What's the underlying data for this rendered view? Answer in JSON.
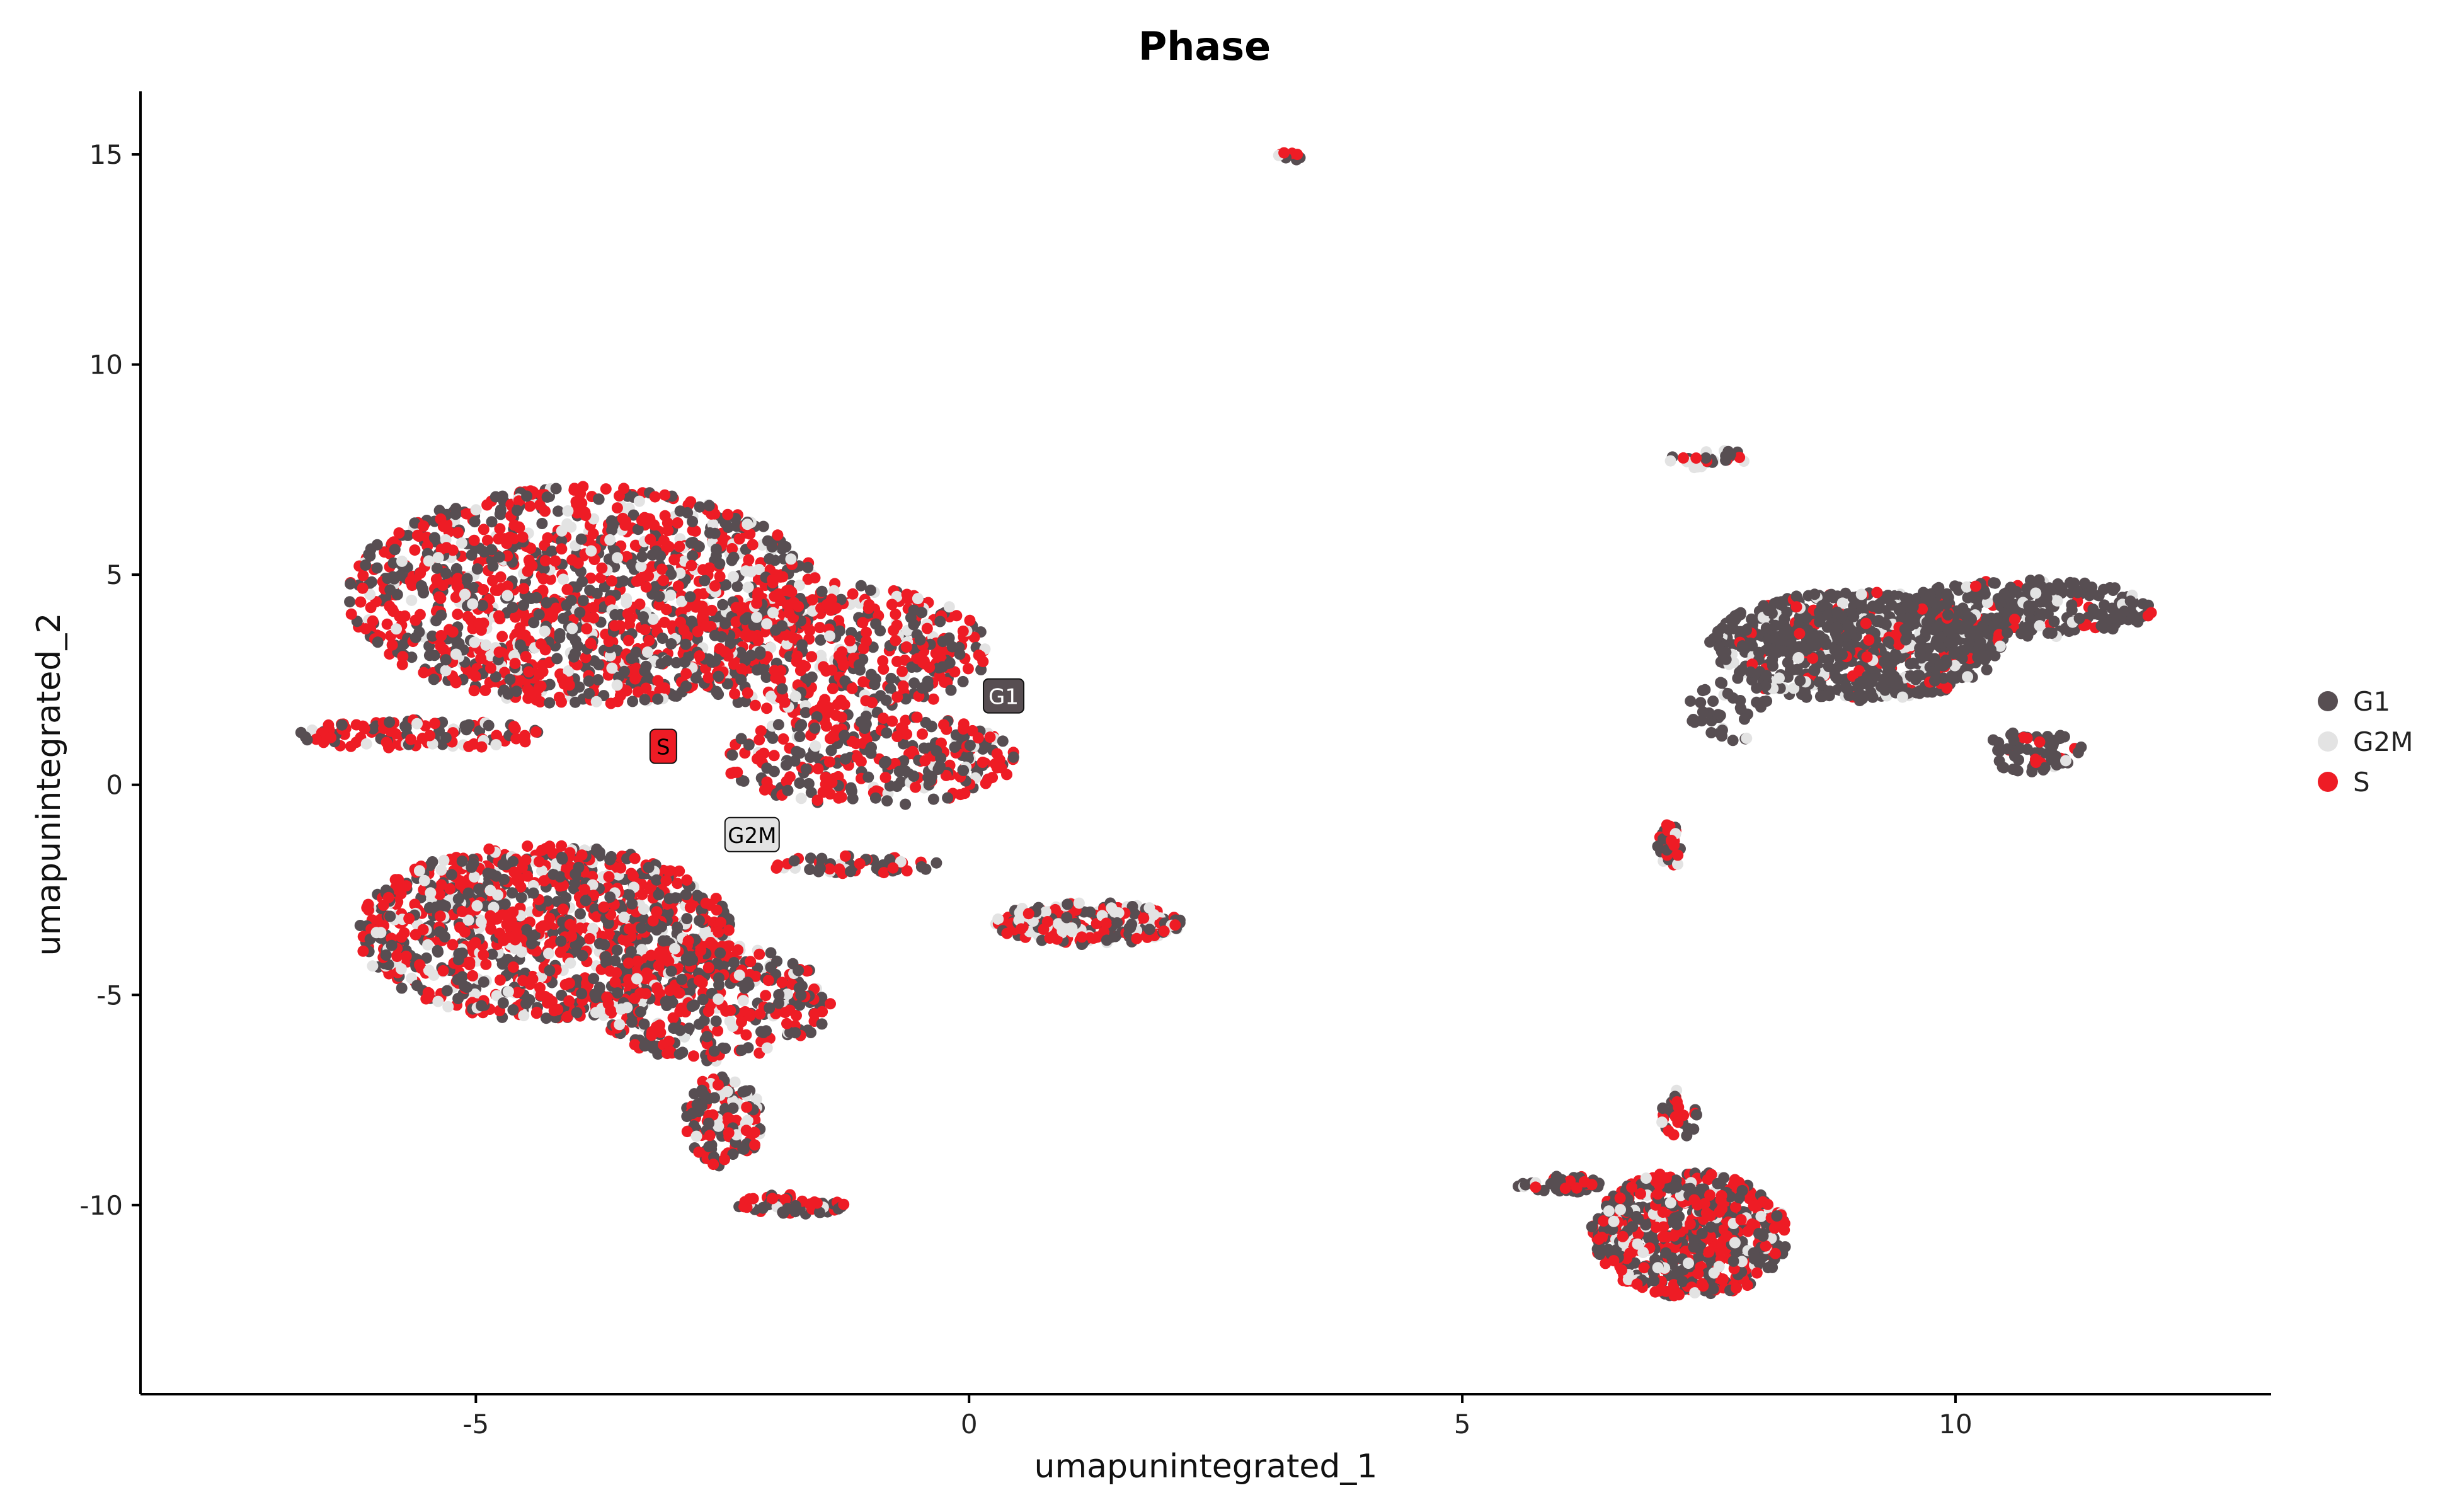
{
  "chart_data": {
    "type": "scatter",
    "title": "Phase",
    "xlabel": "umapunintegrated_1",
    "ylabel": "umapunintegrated_2",
    "xlim": [
      -8.4,
      13.2
    ],
    "ylim": [
      -14.5,
      16.5
    ],
    "xticks": [
      -5,
      0,
      5,
      10
    ],
    "yticks": [
      -10,
      -5,
      0,
      5,
      10,
      15
    ],
    "tick_labels_x": [
      "-5",
      "0",
      "5",
      "10"
    ],
    "tick_labels_y": [
      "-10",
      "-5",
      "0",
      "5",
      "10",
      "15"
    ],
    "grid": false,
    "legend_position": "right",
    "legend": [
      {
        "label": "G1",
        "color": "#574e52"
      },
      {
        "label": "G2M",
        "color": "#e3e3e3"
      },
      {
        "label": "S",
        "color": "#ee1c25"
      }
    ],
    "annotations": [
      {
        "label": "G1",
        "x": 0.35,
        "y": 2.1,
        "color": "#574e52",
        "text_color": "#ffffff"
      },
      {
        "label": "S",
        "x": -3.1,
        "y": 0.9,
        "color": "#ee1c25",
        "text_color": "#000000"
      },
      {
        "label": "G2M",
        "x": -2.2,
        "y": -1.2,
        "color": "#e3e3e3",
        "text_color": "#000000"
      }
    ],
    "clusters": [
      {
        "cx": -3.9,
        "cy": 4.5,
        "rx": 2.4,
        "ry": 2.6,
        "n": 1300,
        "mix": [
          0.38,
          0.14,
          0.48
        ]
      },
      {
        "cx": -1.4,
        "cy": 3.2,
        "rx": 1.6,
        "ry": 1.6,
        "n": 450,
        "mix": [
          0.4,
          0.12,
          0.48
        ]
      },
      {
        "cx": -1.0,
        "cy": 0.6,
        "rx": 1.5,
        "ry": 1.1,
        "n": 300,
        "mix": [
          0.38,
          0.12,
          0.5
        ]
      },
      {
        "cx": -5.6,
        "cy": 1.2,
        "rx": 1.3,
        "ry": 0.35,
        "n": 110,
        "mix": [
          0.3,
          0.15,
          0.55
        ]
      },
      {
        "cx": -4.3,
        "cy": -3.5,
        "rx": 1.9,
        "ry": 2.1,
        "n": 1100,
        "mix": [
          0.4,
          0.17,
          0.43
        ]
      },
      {
        "cx": -2.6,
        "cy": -5.2,
        "rx": 1.2,
        "ry": 1.4,
        "n": 350,
        "mix": [
          0.4,
          0.15,
          0.45
        ]
      },
      {
        "cx": -2.5,
        "cy": -8.0,
        "rx": 0.4,
        "ry": 1.1,
        "n": 130,
        "mix": [
          0.4,
          0.15,
          0.45
        ]
      },
      {
        "cx": -1.8,
        "cy": -10.0,
        "rx": 0.55,
        "ry": 0.25,
        "n": 60,
        "mix": [
          0.4,
          0.1,
          0.5
        ]
      },
      {
        "cx": -1.2,
        "cy": -1.9,
        "rx": 0.9,
        "ry": 0.22,
        "n": 60,
        "mix": [
          0.4,
          0.2,
          0.4
        ]
      },
      {
        "cx": 1.2,
        "cy": -3.3,
        "rx": 0.95,
        "ry": 0.5,
        "n": 230,
        "mix": [
          0.3,
          0.3,
          0.4
        ]
      },
      {
        "cx": 9.0,
        "cy": 3.3,
        "rx": 1.5,
        "ry": 1.3,
        "n": 800,
        "mix": [
          0.8,
          0.1,
          0.1
        ]
      },
      {
        "cx": 10.7,
        "cy": 4.2,
        "rx": 1.3,
        "ry": 0.7,
        "n": 280,
        "mix": [
          0.85,
          0.08,
          0.07
        ]
      },
      {
        "cx": 10.8,
        "cy": 0.8,
        "rx": 0.5,
        "ry": 0.5,
        "n": 70,
        "mix": [
          0.8,
          0.1,
          0.1
        ]
      },
      {
        "cx": 7.7,
        "cy": 1.8,
        "rx": 0.4,
        "ry": 0.8,
        "n": 40,
        "mix": [
          0.85,
          0.1,
          0.05
        ]
      },
      {
        "cx": 7.1,
        "cy": -1.5,
        "rx": 0.12,
        "ry": 0.6,
        "n": 30,
        "mix": [
          0.4,
          0.1,
          0.5
        ]
      },
      {
        "cx": 7.5,
        "cy": 7.75,
        "rx": 0.4,
        "ry": 0.25,
        "n": 30,
        "mix": [
          0.6,
          0.3,
          0.1
        ]
      },
      {
        "cx": 3.25,
        "cy": 14.95,
        "rx": 0.12,
        "ry": 0.1,
        "n": 10,
        "mix": [
          0.2,
          0.5,
          0.3
        ]
      },
      {
        "cx": 7.3,
        "cy": -10.7,
        "rx": 1.0,
        "ry": 1.5,
        "n": 650,
        "mix": [
          0.4,
          0.13,
          0.47
        ]
      },
      {
        "cx": 6.0,
        "cy": -9.5,
        "rx": 0.45,
        "ry": 0.2,
        "n": 40,
        "mix": [
          0.7,
          0.1,
          0.2
        ]
      },
      {
        "cx": 7.2,
        "cy": -7.8,
        "rx": 0.2,
        "ry": 0.6,
        "n": 25,
        "mix": [
          0.5,
          0.1,
          0.4
        ]
      }
    ]
  }
}
